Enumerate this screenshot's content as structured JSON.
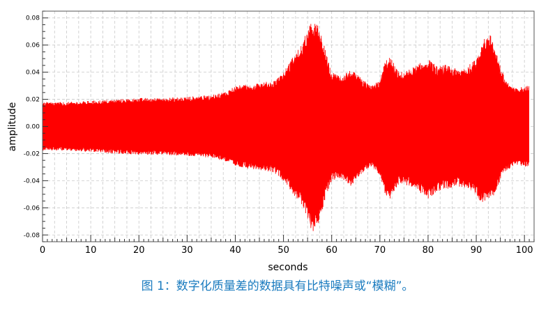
{
  "chart_data": {
    "type": "line",
    "xlabel": "seconds",
    "ylabel": "amplitude",
    "xlim": [
      0,
      102
    ],
    "ylim": [
      -0.085,
      0.085
    ],
    "x_ticks": [
      0,
      10,
      20,
      30,
      40,
      50,
      60,
      70,
      80,
      90,
      100
    ],
    "y_ticks": [
      0.08,
      0.06,
      0.04,
      0.02,
      0.0,
      -0.02,
      -0.04,
      -0.06,
      -0.08
    ],
    "x_tick_labels": [
      "0",
      "10",
      "20",
      "30",
      "40",
      "50",
      "60",
      "70",
      "80",
      "90",
      "100"
    ],
    "y_tick_labels": [
      "0.08",
      "0.06",
      "0.04",
      "0.02",
      "0.00",
      "-0.02",
      "-0.04",
      "-0.06",
      "-0.08"
    ],
    "grid": true,
    "series": [
      {
        "color": "#ff0000",
        "envelope": {
          "x": [
            0,
            5,
            10,
            15,
            20,
            25,
            30,
            35,
            38,
            40,
            45,
            48,
            50,
            52,
            54,
            55,
            56,
            57,
            58,
            59,
            60,
            62,
            64,
            66,
            68,
            70,
            71,
            72,
            74,
            76,
            78,
            80,
            82,
            84,
            86,
            88,
            90,
            91,
            92,
            93,
            94,
            95,
            96,
            98,
            100,
            101
          ],
          "y_max": [
            0.018,
            0.018,
            0.019,
            0.02,
            0.021,
            0.021,
            0.022,
            0.023,
            0.026,
            0.03,
            0.032,
            0.034,
            0.04,
            0.052,
            0.062,
            0.072,
            0.078,
            0.076,
            0.066,
            0.052,
            0.04,
            0.038,
            0.042,
            0.036,
            0.03,
            0.034,
            0.048,
            0.052,
            0.04,
            0.042,
            0.046,
            0.05,
            0.044,
            0.046,
            0.042,
            0.044,
            0.05,
            0.062,
            0.066,
            0.068,
            0.058,
            0.045,
            0.035,
            0.028,
            0.03,
            0.03
          ],
          "y_min": [
            -0.018,
            -0.018,
            -0.019,
            -0.02,
            -0.021,
            -0.021,
            -0.022,
            -0.023,
            -0.026,
            -0.03,
            -0.032,
            -0.034,
            -0.04,
            -0.05,
            -0.06,
            -0.07,
            -0.078,
            -0.074,
            -0.064,
            -0.05,
            -0.04,
            -0.038,
            -0.044,
            -0.036,
            -0.03,
            -0.036,
            -0.05,
            -0.054,
            -0.042,
            -0.044,
            -0.048,
            -0.054,
            -0.048,
            -0.046,
            -0.044,
            -0.046,
            -0.052,
            -0.058,
            -0.054,
            -0.052,
            -0.05,
            -0.04,
            -0.034,
            -0.028,
            -0.03,
            -0.03
          ]
        }
      }
    ]
  },
  "caption": "图 1：数字化质量差的数据具有比特噪声或“模糊”。"
}
